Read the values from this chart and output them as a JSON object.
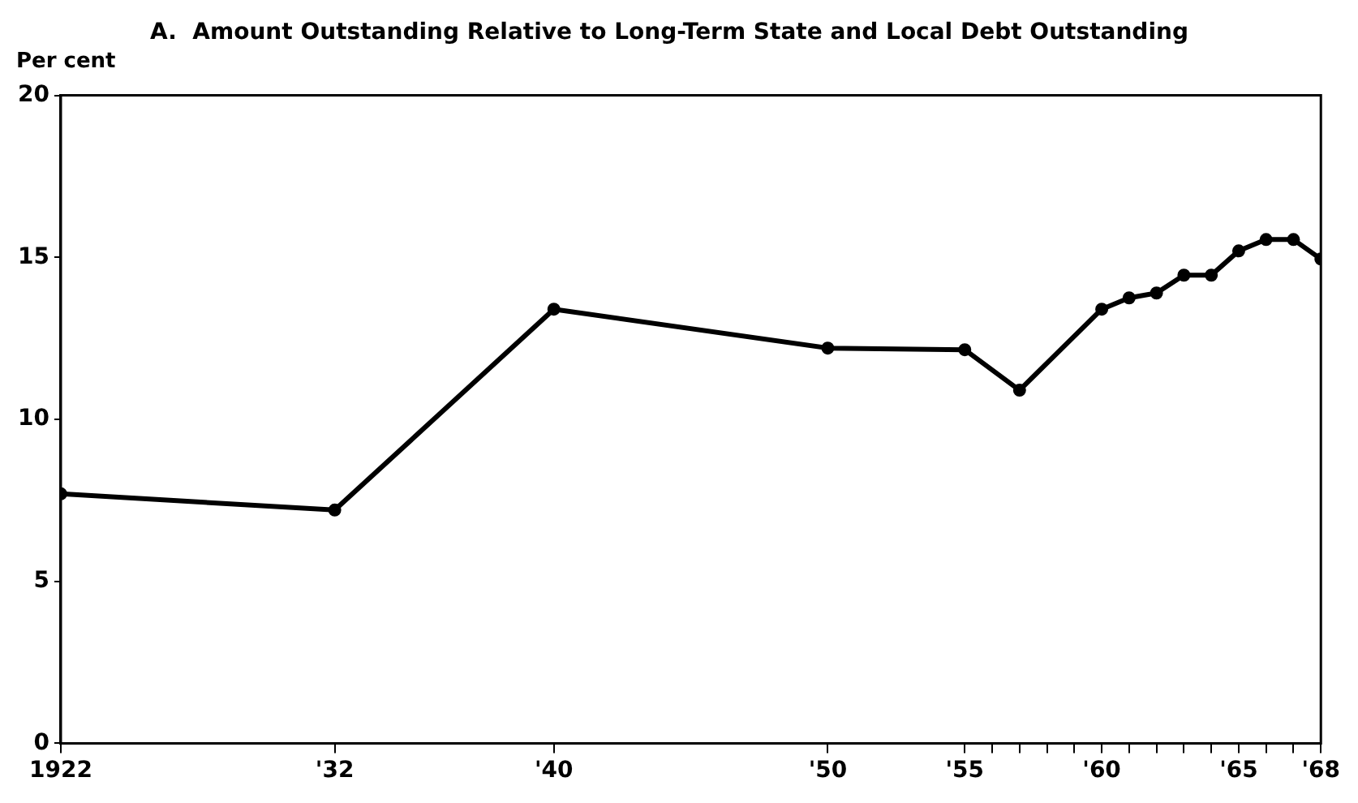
{
  "chart_data": {
    "type": "line",
    "title": "A.  Amount Outstanding Relative to Long-Term State and Local Debt Outstanding",
    "ylabel": "Per cent",
    "x": [
      1922,
      1932,
      1940,
      1950,
      1955,
      1957,
      1960,
      1961,
      1962,
      1963,
      1964,
      1965,
      1966,
      1967,
      1968
    ],
    "series": [
      {
        "color": "#000000",
        "values": [
          7.7,
          7.2,
          13.4,
          12.2,
          12.15,
          10.9,
          13.4,
          13.75,
          13.9,
          14.45,
          14.45,
          15.2,
          15.55,
          15.55,
          14.95
        ]
      }
    ],
    "xlim": [
      1922,
      1968
    ],
    "xticks": [
      {
        "value": 1922,
        "label": "1922"
      },
      {
        "value": 1932,
        "label": "'32"
      },
      {
        "value": 1940,
        "label": "'40"
      },
      {
        "value": 1950,
        "label": "'50"
      },
      {
        "value": 1955,
        "label": "'55"
      },
      {
        "value": 1956,
        "label": null
      },
      {
        "value": 1957,
        "label": null
      },
      {
        "value": 1958,
        "label": null
      },
      {
        "value": 1959,
        "label": null
      },
      {
        "value": 1960,
        "label": "'60"
      },
      {
        "value": 1961,
        "label": null
      },
      {
        "value": 1962,
        "label": null
      },
      {
        "value": 1963,
        "label": null
      },
      {
        "value": 1964,
        "label": null
      },
      {
        "value": 1965,
        "label": "'65"
      },
      {
        "value": 1966,
        "label": null
      },
      {
        "value": 1967,
        "label": null
      },
      {
        "value": 1968,
        "label": "'68"
      }
    ],
    "ylim": [
      0,
      20
    ],
    "yticks": [
      0,
      5,
      10,
      15,
      20
    ],
    "grid": false,
    "legend": false,
    "marker": "circle",
    "line_style": "solid"
  }
}
